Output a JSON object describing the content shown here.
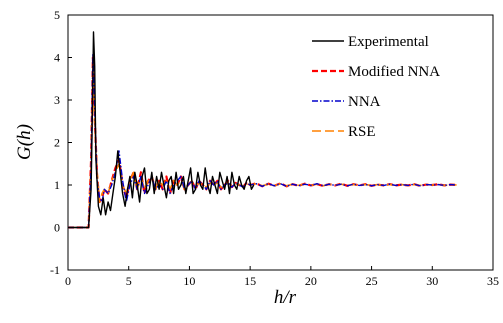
{
  "chart_data": {
    "type": "line",
    "xlabel": "h/r",
    "ylabel": "G(h)",
    "xlim": [
      0,
      35
    ],
    "ylim": [
      -1,
      5
    ],
    "xticks": [
      0,
      5,
      10,
      15,
      20,
      25,
      30,
      35
    ],
    "yticks": [
      -1,
      0,
      1,
      2,
      3,
      4,
      5
    ],
    "grid": false,
    "legend_position": "top-right",
    "series": [
      {
        "name": "Experimental",
        "color": "#000000",
        "dash": "solid",
        "x": [
          0,
          1.7,
          1.9,
          2.0,
          2.1,
          2.2,
          2.3,
          2.5,
          2.7,
          2.9,
          3.1,
          3.3,
          3.5,
          3.7,
          3.9,
          4.1,
          4.3,
          4.5,
          4.7,
          4.9,
          5.1,
          5.3,
          5.5,
          5.7,
          5.9,
          6.1,
          6.3,
          6.5,
          6.7,
          6.9,
          7.1,
          7.3,
          7.5,
          7.7,
          7.9,
          8.1,
          8.3,
          8.5,
          8.7,
          8.9,
          9.1,
          9.3,
          9.5,
          9.7,
          9.9,
          10.1,
          10.3,
          10.5,
          10.7,
          10.9,
          11.1,
          11.3,
          11.5,
          11.7,
          11.9,
          12.1,
          12.3,
          12.5,
          12.7,
          12.9,
          13.1,
          13.3,
          13.5,
          13.7,
          13.9,
          14.1,
          14.3,
          14.5,
          14.7,
          14.9,
          15.1,
          15.3
        ],
        "y": [
          0,
          0,
          0.9,
          2.6,
          4.6,
          3.8,
          1.6,
          0.5,
          0.3,
          0.7,
          0.3,
          0.6,
          0.4,
          0.8,
          1.2,
          1.8,
          1.3,
          0.8,
          0.5,
          0.9,
          1.2,
          0.7,
          1.3,
          1.0,
          0.6,
          1.2,
          1.4,
          0.8,
          0.9,
          1.3,
          0.8,
          1.2,
          0.9,
          1.3,
          1.0,
          0.7,
          1.1,
          1.2,
          0.8,
          1.3,
          0.9,
          1.0,
          1.2,
          0.8,
          1.1,
          1.4,
          0.8,
          0.9,
          1.3,
          1.0,
          0.9,
          1.4,
          1.0,
          0.8,
          1.2,
          1.0,
          0.8,
          1.3,
          1.1,
          0.9,
          1.2,
          0.8,
          1.3,
          1.0,
          0.9,
          1.2,
          1.0,
          0.9,
          1.1,
          1.2,
          0.9,
          1.0
        ]
      },
      {
        "name": "Modified NNA",
        "color": "#ff0000",
        "dash": "dashed",
        "x": [
          0,
          1.7,
          1.9,
          2.05,
          2.2,
          2.4,
          2.6,
          2.8,
          3.0,
          3.3,
          3.6,
          3.9,
          4.2,
          4.5,
          4.8,
          5.1,
          5.4,
          5.7,
          6.0,
          6.3,
          6.6,
          6.9,
          7.2,
          7.5,
          7.8,
          8.1,
          8.4,
          8.7,
          9.0,
          9.3,
          9.6,
          9.9,
          10.2,
          10.5,
          10.8,
          11.1,
          11.4,
          11.7,
          12.0,
          12.3,
          12.6,
          12.9,
          13.2,
          13.5,
          13.8,
          14.1,
          14.4,
          14.7,
          15.0,
          15.5,
          16.0,
          16.5,
          17.0,
          17.5,
          18.0,
          18.5,
          19.0,
          19.5,
          20.0,
          20.5,
          21.0,
          21.5,
          22.0,
          22.5,
          23.0,
          23.5,
          24.0,
          24.5,
          25.0,
          25.5,
          26.0,
          26.5,
          27.0,
          27.5,
          28.0,
          28.5,
          29.0,
          29.5,
          30.0,
          30.5,
          31.0,
          31.5,
          32.0
        ],
        "y": [
          0,
          0,
          1.6,
          4.0,
          2.6,
          1.2,
          0.6,
          0.7,
          0.9,
          0.8,
          1.1,
          1.4,
          1.6,
          1.0,
          0.7,
          1.1,
          1.3,
          0.9,
          1.3,
          0.8,
          1.1,
          1.2,
          0.9,
          1.1,
          0.9,
          1.2,
          0.8,
          1.1,
          1.0,
          1.2,
          0.9,
          1.0,
          1.1,
          0.9,
          1.1,
          1.0,
          0.9,
          1.1,
          1.0,
          1.1,
          0.9,
          1.0,
          1.1,
          0.95,
          1.05,
          1.0,
          0.95,
          1.05,
          1.0,
          1.04,
          0.97,
          1.03,
          0.98,
          1.04,
          0.97,
          1.02,
          0.98,
          1.03,
          0.99,
          1.02,
          0.98,
          1.02,
          0.99,
          1.03,
          0.98,
          1.02,
          0.99,
          1.02,
          0.98,
          1.01,
          0.99,
          1.02,
          0.99,
          1.01,
          0.99,
          1.02,
          0.98,
          1.01,
          1.0,
          1.02,
          0.99,
          1.01,
          1.0
        ]
      },
      {
        "name": "NNA",
        "color": "#0000cc",
        "dash": "dashdot",
        "x": [
          0,
          1.7,
          1.9,
          2.05,
          2.2,
          2.4,
          2.6,
          2.8,
          3.0,
          3.3,
          3.6,
          3.9,
          4.2,
          4.5,
          4.8,
          5.1,
          5.4,
          5.7,
          6.0,
          6.3,
          6.6,
          6.9,
          7.2,
          7.5,
          7.8,
          8.1,
          8.4,
          8.7,
          9.0,
          9.3,
          9.6,
          9.9,
          10.2,
          10.5,
          10.8,
          11.1,
          11.4,
          11.7,
          12.0,
          12.3,
          12.6,
          12.9,
          13.2,
          13.5,
          13.8,
          14.1,
          14.4,
          14.7,
          15.0,
          15.5,
          16.0,
          16.5,
          17.0,
          17.5,
          18.0,
          18.5,
          19.0,
          19.5,
          20.0,
          20.5,
          21.0,
          21.5,
          22.0,
          22.5,
          23.0,
          23.5,
          24.0,
          24.5,
          25.0,
          25.5,
          26.0,
          26.5,
          27.0,
          27.5,
          28.0,
          28.5,
          29.0,
          29.5,
          30.0,
          30.5,
          31.0,
          31.5,
          32.0
        ],
        "y": [
          0,
          0,
          1.4,
          4.1,
          2.8,
          1.1,
          0.7,
          0.6,
          0.9,
          0.8,
          1.0,
          1.3,
          1.8,
          1.1,
          0.6,
          1.0,
          1.2,
          0.9,
          1.2,
          0.8,
          1.0,
          1.2,
          0.9,
          1.0,
          0.9,
          1.1,
          0.8,
          1.0,
          1.1,
          1.2,
          0.9,
          1.0,
          1.1,
          0.9,
          1.1,
          1.0,
          0.9,
          1.1,
          1.0,
          1.1,
          0.9,
          1.0,
          1.05,
          0.95,
          1.05,
          1.0,
          0.95,
          1.05,
          1.0,
          1.03,
          0.97,
          1.03,
          0.98,
          1.03,
          0.97,
          1.02,
          0.98,
          1.02,
          0.99,
          1.03,
          0.98,
          1.02,
          0.99,
          1.02,
          0.98,
          1.02,
          0.99,
          1.01,
          0.98,
          1.01,
          0.99,
          1.02,
          0.99,
          1.01,
          0.99,
          1.02,
          0.98,
          1.01,
          1.0,
          1.01,
          0.99,
          1.01,
          1.0
        ]
      },
      {
        "name": "RSE",
        "color": "#ff8000",
        "dash": "longdash",
        "x": [
          0,
          1.7,
          1.9,
          2.05,
          2.2,
          2.4,
          2.6,
          2.8,
          3.0,
          3.3,
          3.6,
          3.9,
          4.2,
          4.5,
          4.8,
          5.1,
          5.4,
          5.7,
          6.0,
          6.3,
          6.6,
          6.9,
          7.2,
          7.5,
          7.8,
          8.1,
          8.4,
          8.7,
          9.0,
          9.3,
          9.6,
          9.9,
          10.2,
          10.5,
          10.8,
          11.1,
          11.4,
          11.7,
          12.0,
          12.3,
          12.6,
          12.9,
          13.2,
          13.5,
          13.8,
          14.1,
          14.4,
          14.7,
          15.0,
          15.5,
          16.0,
          16.5,
          17.0,
          17.5,
          18.0,
          18.5,
          19.0,
          19.5,
          20.0,
          20.5,
          21.0,
          21.5,
          22.0,
          22.5,
          23.0,
          23.5,
          24.0,
          24.5,
          25.0,
          25.5,
          26.0,
          26.5,
          27.0,
          27.5,
          28.0,
          28.5,
          29.0,
          29.5,
          30.0,
          30.5,
          31.0,
          31.5,
          32.0
        ],
        "y": [
          0,
          0,
          1.5,
          3.8,
          2.5,
          1.3,
          0.6,
          0.8,
          0.9,
          0.8,
          1.1,
          1.3,
          1.5,
          1.0,
          0.8,
          1.1,
          1.3,
          0.9,
          1.2,
          0.9,
          1.1,
          1.2,
          0.9,
          1.1,
          1.0,
          1.1,
          0.9,
          1.1,
          1.0,
          1.1,
          0.9,
          1.0,
          1.1,
          0.95,
          1.05,
          1.0,
          0.95,
          1.05,
          1.0,
          1.05,
          0.95,
          1.0,
          1.05,
          0.97,
          1.03,
          1.0,
          0.97,
          1.03,
          1.0,
          1.03,
          0.98,
          1.02,
          0.98,
          1.03,
          0.98,
          1.02,
          0.99,
          1.02,
          0.99,
          1.02,
          0.98,
          1.02,
          0.99,
          1.02,
          0.99,
          1.01,
          0.99,
          1.01,
          0.99,
          1.01,
          0.99,
          1.01,
          0.99,
          1.01,
          0.99,
          1.01,
          0.99,
          1.01,
          1.0,
          1.01,
          0.99,
          1.01,
          1.0
        ]
      }
    ]
  }
}
